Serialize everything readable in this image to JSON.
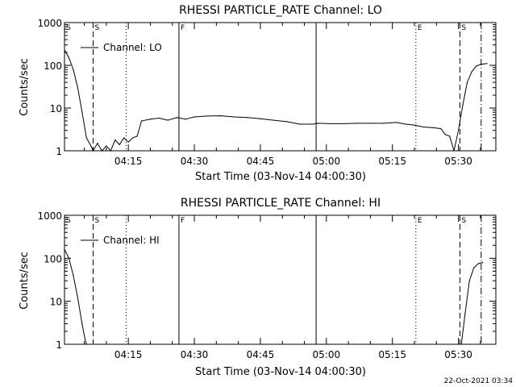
{
  "footer_timestamp": "22-Oct-2021 03:34",
  "chart_data": [
    {
      "type": "line",
      "title": "RHESSI PARTICLE_RATE Channel: LO",
      "xlabel": "Start Time (03-Nov-14 04:00:30)",
      "ylabel": "Counts/sec",
      "yscale": "log",
      "ylim": [
        1,
        1000
      ],
      "ytick_labels": [
        "1",
        "10",
        "100",
        "1000"
      ],
      "xlim": [
        "04:00:30",
        "05:38:30"
      ],
      "xtick_labels": [
        "04:15",
        "04:30",
        "04:45",
        "05:00",
        "05:15",
        "05:30"
      ],
      "legend": "Channel: LO",
      "legend_placement": "top-left",
      "series": [
        {
          "name": "Channel: LO",
          "x": [
            "04:00:30",
            "04:01:30",
            "04:02:30",
            "04:03:30",
            "04:04:30",
            "04:05:30",
            "04:06:30",
            "04:07:00",
            "04:08:00",
            "04:09:00",
            "04:10:00",
            "04:11:00",
            "04:12:00",
            "04:13:00",
            "04:14:00",
            "04:15:00",
            "04:16:00",
            "04:17:00",
            "04:18:00",
            "04:20:00",
            "04:22:00",
            "04:24:00",
            "04:26:00",
            "04:28:00",
            "04:30:00",
            "04:33:00",
            "04:36:00",
            "04:39:00",
            "04:42:00",
            "04:45:00",
            "04:48:00",
            "04:51:00",
            "04:54:00",
            "04:57:00",
            "04:58:00",
            "05:01:00",
            "05:04:00",
            "05:07:00",
            "05:10:00",
            "05:13:00",
            "05:16:00",
            "05:18:00",
            "05:20:00",
            "05:22:00",
            "05:24:00",
            "05:26:00",
            "05:27:00",
            "05:28:00",
            "05:29:00",
            "05:30:00",
            "05:31:00",
            "05:32:00",
            "05:33:00",
            "05:34:00",
            "05:35:00",
            "05:36:30"
          ],
          "y": [
            230,
            150,
            80,
            30,
            8,
            2,
            1.3,
            1,
            1.5,
            1,
            1.3,
            1,
            1.8,
            1.4,
            2,
            1.6,
            2,
            2.2,
            5,
            5.5,
            5.8,
            5.2,
            6,
            5.5,
            6.2,
            6.5,
            6.6,
            6.2,
            6,
            5.6,
            5.2,
            4.8,
            4.2,
            4.2,
            4.4,
            4.3,
            4.3,
            4.4,
            4.4,
            4.4,
            4.6,
            4.2,
            4,
            3.6,
            3.5,
            3.3,
            2.4,
            2.2,
            1,
            3,
            12,
            40,
            70,
            95,
            105,
            110
          ]
        }
      ],
      "vertical_markers": [
        {
          "time": "04:07:00",
          "style": "dashed",
          "label": "S"
        },
        {
          "time": "04:14:30",
          "style": "dotted",
          "label": ""
        },
        {
          "time": "04:26:30",
          "style": "solid",
          "label": "F"
        },
        {
          "time": "04:57:40",
          "style": "solid",
          "label": ""
        },
        {
          "time": "05:20:20",
          "style": "dotted",
          "label": "E"
        },
        {
          "time": "05:30:20",
          "style": "dashed",
          "label": "S"
        },
        {
          "time": "05:35:10",
          "style": "dashdot",
          "label": ""
        }
      ],
      "start_marker_label": "S"
    },
    {
      "type": "line",
      "title": "RHESSI PARTICLE_RATE Channel: HI",
      "xlabel": "Start Time (03-Nov-14 04:00:30)",
      "ylabel": "Counts/sec",
      "yscale": "log",
      "ylim": [
        1,
        1000
      ],
      "ytick_labels": [
        "1",
        "10",
        "100",
        "1000"
      ],
      "xlim": [
        "04:00:30",
        "05:38:30"
      ],
      "xtick_labels": [
        "04:15",
        "04:30",
        "04:45",
        "05:00",
        "05:15",
        "05:30"
      ],
      "legend": "Channel: HI",
      "legend_placement": "top-left",
      "series": [
        {
          "name": "Channel: HI",
          "x": [
            "04:00:30",
            "04:01:30",
            "04:02:30",
            "04:03:30",
            "04:04:30",
            "04:05:10",
            "04:05:30",
            "05:30:40",
            "05:31:30",
            "05:32:30",
            "05:33:30",
            "05:34:30",
            "05:35:30"
          ],
          "y": [
            160,
            100,
            40,
            12,
            3,
            1.3,
            1,
            1,
            5,
            30,
            60,
            75,
            80
          ]
        }
      ],
      "vertical_markers": [
        {
          "time": "04:07:00",
          "style": "dashed",
          "label": "S"
        },
        {
          "time": "04:14:30",
          "style": "dotted",
          "label": ""
        },
        {
          "time": "04:26:30",
          "style": "solid",
          "label": "F"
        },
        {
          "time": "04:57:40",
          "style": "solid",
          "label": ""
        },
        {
          "time": "05:20:20",
          "style": "dotted",
          "label": "E"
        },
        {
          "time": "05:30:20",
          "style": "dashed",
          "label": "S"
        },
        {
          "time": "05:35:10",
          "style": "dashdot",
          "label": ""
        }
      ],
      "start_marker_label": "S"
    }
  ]
}
